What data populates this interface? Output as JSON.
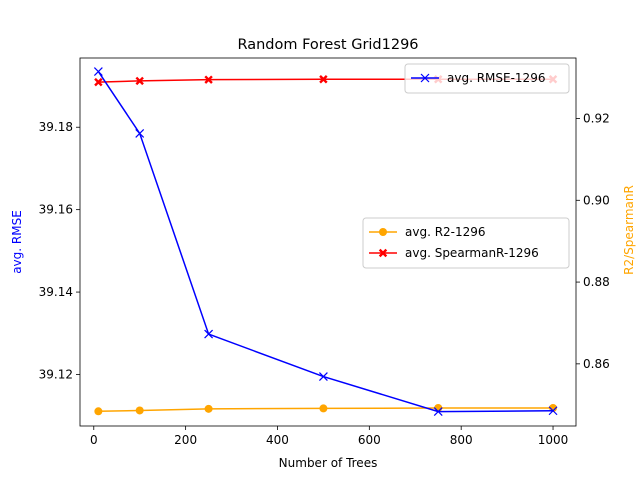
{
  "chart_data": {
    "type": "line",
    "title": "Random Forest Grid1296",
    "xlabel": "Number of Trees",
    "ylabel_left": "avg. RMSE",
    "ylabel_right": "R2/SpearmanR",
    "xlim": [
      -30,
      1050
    ],
    "ylim_left": [
      39.1075,
      39.1968
    ],
    "ylim_right": [
      0.8448,
      0.9348
    ],
    "xticks": [
      0,
      200,
      400,
      600,
      800,
      1000
    ],
    "yticks_left": [
      "39.12",
      "39.14",
      "39.16",
      "39.18"
    ],
    "yticks_left_values": [
      39.12,
      39.14,
      39.16,
      39.18
    ],
    "yticks_right": [
      "0.86",
      "0.88",
      "0.90",
      "0.92"
    ],
    "yticks_right_values": [
      0.86,
      0.88,
      0.9,
      0.92
    ],
    "grid": false,
    "left_axis_color": "#0000ff",
    "right_axis_color": "#ffa500",
    "series_left": [
      {
        "name": "avg. RMSE-1296",
        "color": "#0000ff",
        "marker": "x",
        "x": [
          10,
          100,
          250,
          500,
          750,
          1000
        ],
        "y": [
          39.1935,
          39.1785,
          39.1298,
          39.1195,
          39.111,
          39.1112
        ]
      }
    ],
    "series_right": [
      {
        "name": "avg. R2-1296",
        "color": "#ffa500",
        "marker": "o",
        "x": [
          10,
          100,
          250,
          500,
          750,
          1000
        ],
        "y": [
          0.8484,
          0.8486,
          0.849,
          0.8491,
          0.8492,
          0.8492
        ]
      },
      {
        "name": "avg. SpearmanR-1296",
        "color": "#ff0000",
        "marker": "X",
        "x": [
          10,
          100,
          250,
          500,
          750,
          1000
        ],
        "y": [
          0.9289,
          0.9292,
          0.9295,
          0.9296,
          0.9296,
          0.9296
        ]
      }
    ],
    "legend_left_placement": "top-right",
    "legend_right_placement": "center-right"
  }
}
